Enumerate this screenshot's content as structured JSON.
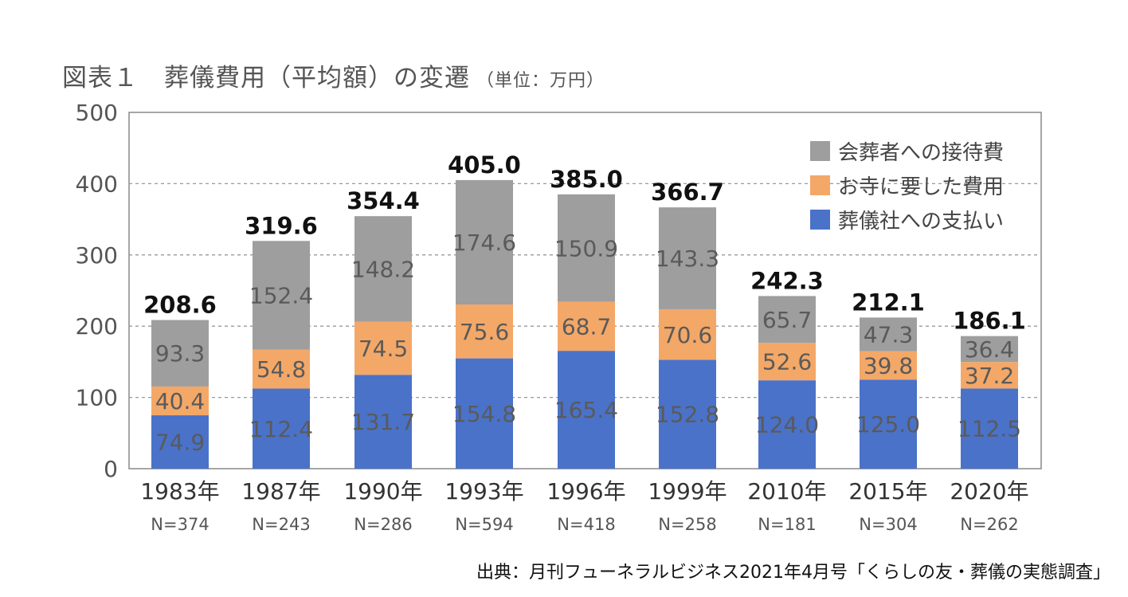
{
  "title": "図表１　葬儀費用（平均額）の変遷",
  "unit": "（単位：万円）",
  "source": "出典：月刊フューネラルビジネス2021年4月号「くらしの友・葬儀の実態調査」",
  "colors": {
    "fee": "#4a72c9",
    "temple": "#f3a868",
    "hospitality": "#9e9e9e",
    "grid": "#9a9a9a",
    "axis_text": "#555555",
    "total_text": "#111111",
    "segment_text": "#5a5a5a"
  },
  "chart_data": {
    "type": "bar",
    "stacked": true,
    "categories": [
      "1983年",
      "1987年",
      "1990年",
      "1993年",
      "1996年",
      "1999年",
      "2010年",
      "2015年",
      "2020年"
    ],
    "sample_sizes": [
      "N=374",
      "N=243",
      "N=286",
      "N=594",
      "N=418",
      "N=258",
      "N=181",
      "N=304",
      "N=262"
    ],
    "series": [
      {
        "name": "葬儀社への支払い",
        "color_key": "fee",
        "values": [
          74.9,
          112.4,
          131.7,
          154.8,
          165.4,
          152.8,
          124.0,
          125.0,
          112.5
        ],
        "labels": [
          "74.9",
          "112.4",
          "131.7",
          "154.8",
          "165.4",
          "152.8",
          "124.0",
          "125.0",
          "112.5"
        ]
      },
      {
        "name": "お寺に要した費用",
        "color_key": "temple",
        "values": [
          40.4,
          54.8,
          74.5,
          75.6,
          68.7,
          70.6,
          52.6,
          39.8,
          37.2
        ],
        "labels": [
          "40.4",
          "54.8",
          "74.5",
          "75.6",
          "68.7",
          "70.6",
          "52.6",
          "39.8",
          "37.2"
        ]
      },
      {
        "name": "会葬者への接待費",
        "color_key": "hospitality",
        "values": [
          93.3,
          152.4,
          148.2,
          174.6,
          150.9,
          143.3,
          65.7,
          47.3,
          36.4
        ],
        "labels": [
          "93.3",
          "152.4",
          "148.2",
          "174.6",
          "150.9",
          "143.3",
          "65.7",
          "47.3",
          "36.4"
        ]
      }
    ],
    "totals": [
      208.6,
      319.6,
      354.4,
      405.0,
      385.0,
      366.7,
      242.3,
      212.1,
      186.1
    ],
    "total_labels": [
      "208.6",
      "319.6",
      "354.4",
      "405.0",
      "385.0",
      "366.7",
      "242.3",
      "212.1",
      "186.1"
    ],
    "ylim": [
      0,
      500
    ],
    "yticks": [
      0,
      100,
      200,
      300,
      400,
      500
    ],
    "ytick_labels": [
      "0",
      "100",
      "200",
      "300",
      "400",
      "500"
    ],
    "grid": "dashed",
    "legend": {
      "position": "top-right",
      "entries": [
        {
          "label": "会葬者への接待費",
          "color_key": "hospitality"
        },
        {
          "label": "お寺に要した費用",
          "color_key": "temple"
        },
        {
          "label": "葬儀社への支払い",
          "color_key": "fee"
        }
      ]
    }
  }
}
